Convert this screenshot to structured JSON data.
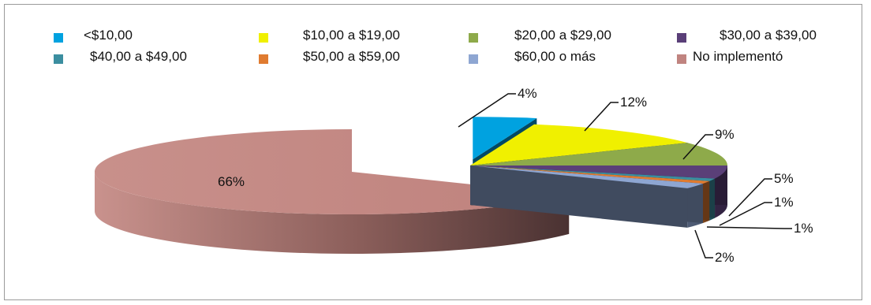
{
  "chart_data": {
    "type": "pie",
    "three_d": true,
    "exploded": true,
    "legend_position": "top",
    "categories": [
      "<$10,00",
      "$10,00 a $19,00",
      "$20,00 a $29,00",
      "$30,00 a $39,00",
      "$40,00 a $49,00",
      "$50,00 a $59,00",
      "$60,00 o más",
      "No implementó"
    ],
    "values": [
      4,
      12,
      9,
      5,
      1,
      1,
      2,
      66
    ],
    "data_labels": [
      "4%",
      "12%",
      "9%",
      "5%",
      "1%",
      "1%",
      "2%",
      "66%"
    ],
    "colors": [
      "#00a2e0",
      "#f0f000",
      "#8eaa4a",
      "#5a3f78",
      "#3b8ea0",
      "#e07b30",
      "#8ea6d2",
      "#c08480"
    ]
  }
}
